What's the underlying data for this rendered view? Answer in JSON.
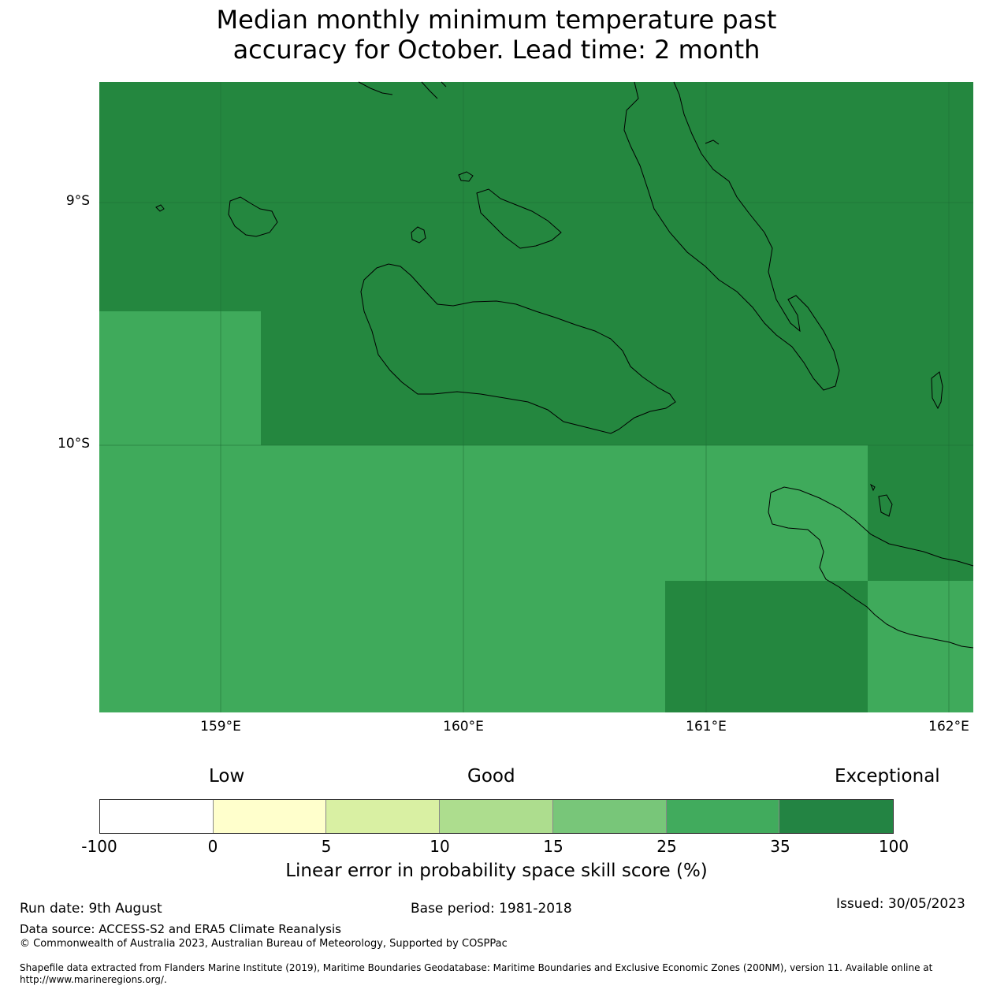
{
  "title_line1": "Median monthly minimum temperature past",
  "title_line2": "accuracy for October. Lead time: 2 month",
  "map": {
    "lat_labels": [
      "9°S",
      "10°S"
    ],
    "lon_labels": [
      "159°E",
      "160°E",
      "161°E",
      "162°E"
    ],
    "colors": {
      "exceptional": "#24873f",
      "very_good": "#3faa5b",
      "coast": "#000000"
    }
  },
  "colorbar": {
    "categories": {
      "low": "Low",
      "good": "Good",
      "exceptional": "Exceptional"
    },
    "bins": [
      {
        "from": "-100",
        "to": "0",
        "color": "#ffffff"
      },
      {
        "from": "0",
        "to": "5",
        "color": "#ffffcc"
      },
      {
        "from": "5",
        "to": "10",
        "color": "#d9f0a3"
      },
      {
        "from": "10",
        "to": "15",
        "color": "#addd8e"
      },
      {
        "from": "15",
        "to": "25",
        "color": "#78c679"
      },
      {
        "from": "25",
        "to": "35",
        "color": "#41ab5d"
      },
      {
        "from": "35",
        "to": "100",
        "color": "#238443"
      }
    ],
    "tick_labels": [
      "-100",
      "0",
      "5",
      "10",
      "15",
      "25",
      "35",
      "100"
    ],
    "label": "Linear error in probability space skill score (%)"
  },
  "footer": {
    "run_date": "Run date: 9th August",
    "base_period": "Base period: 1981-2018",
    "issued": "Issued: 30/05/2023",
    "data_source": "Data source: ACCESS-S2 and ERA5 Climate Reanalysis",
    "copyright": "© Commonwealth of Australia 2023, Australian Bureau of Meteorology, Supported by COSPPac",
    "shapefile_line1": "Shapefile data extracted from Flanders Marine Institute (2019), Maritime Boundaries Geodatabase: Maritime Boundaries and Exclusive Economic Zones (200NM), version 11. Available online at",
    "shapefile_line2": "http://www.marineregions.org/."
  }
}
